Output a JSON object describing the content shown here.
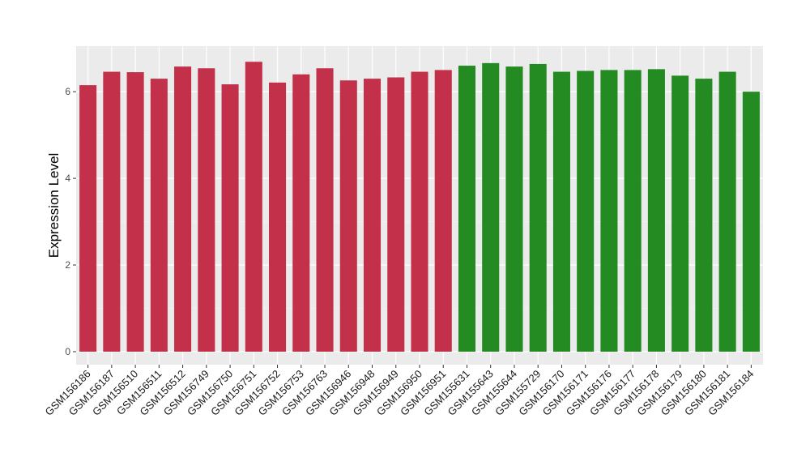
{
  "chart_data": {
    "type": "bar",
    "title": "",
    "xlabel": "",
    "ylabel": "Expression Level",
    "ylim": [
      -0.3,
      7.05
    ],
    "yticks": [
      0,
      2,
      4,
      6
    ],
    "grid": true,
    "background": "#ebebeb",
    "categories": [
      "GSM156186",
      "GSM156187",
      "GSM156510",
      "GSM156511",
      "GSM156512",
      "GSM156749",
      "GSM156750",
      "GSM156751",
      "GSM156752",
      "GSM156753",
      "GSM156763",
      "GSM156946",
      "GSM156948",
      "GSM156949",
      "GSM156950",
      "GSM156951",
      "GSM155631",
      "GSM155643",
      "GSM155644",
      "GSM155729",
      "GSM156170",
      "GSM156171",
      "GSM156176",
      "GSM156177",
      "GSM156178",
      "GSM156179",
      "GSM156180",
      "GSM156181",
      "GSM156184"
    ],
    "values": [
      6.15,
      6.46,
      6.45,
      6.3,
      6.58,
      6.54,
      6.17,
      6.69,
      6.21,
      6.4,
      6.54,
      6.26,
      6.3,
      6.33,
      6.46,
      6.5,
      6.6,
      6.66,
      6.58,
      6.64,
      6.46,
      6.48,
      6.5,
      6.5,
      6.52,
      6.37,
      6.3,
      6.46,
      6.0
    ],
    "group_colors": [
      "#c23049",
      "#c23049",
      "#c23049",
      "#c23049",
      "#c23049",
      "#c23049",
      "#c23049",
      "#c23049",
      "#c23049",
      "#c23049",
      "#c23049",
      "#c23049",
      "#c23049",
      "#c23049",
      "#c23049",
      "#c23049",
      "#238b22",
      "#238b22",
      "#238b22",
      "#238b22",
      "#238b22",
      "#238b22",
      "#238b22",
      "#238b22",
      "#238b22",
      "#238b22",
      "#238b22",
      "#238b22",
      "#238b22"
    ]
  }
}
